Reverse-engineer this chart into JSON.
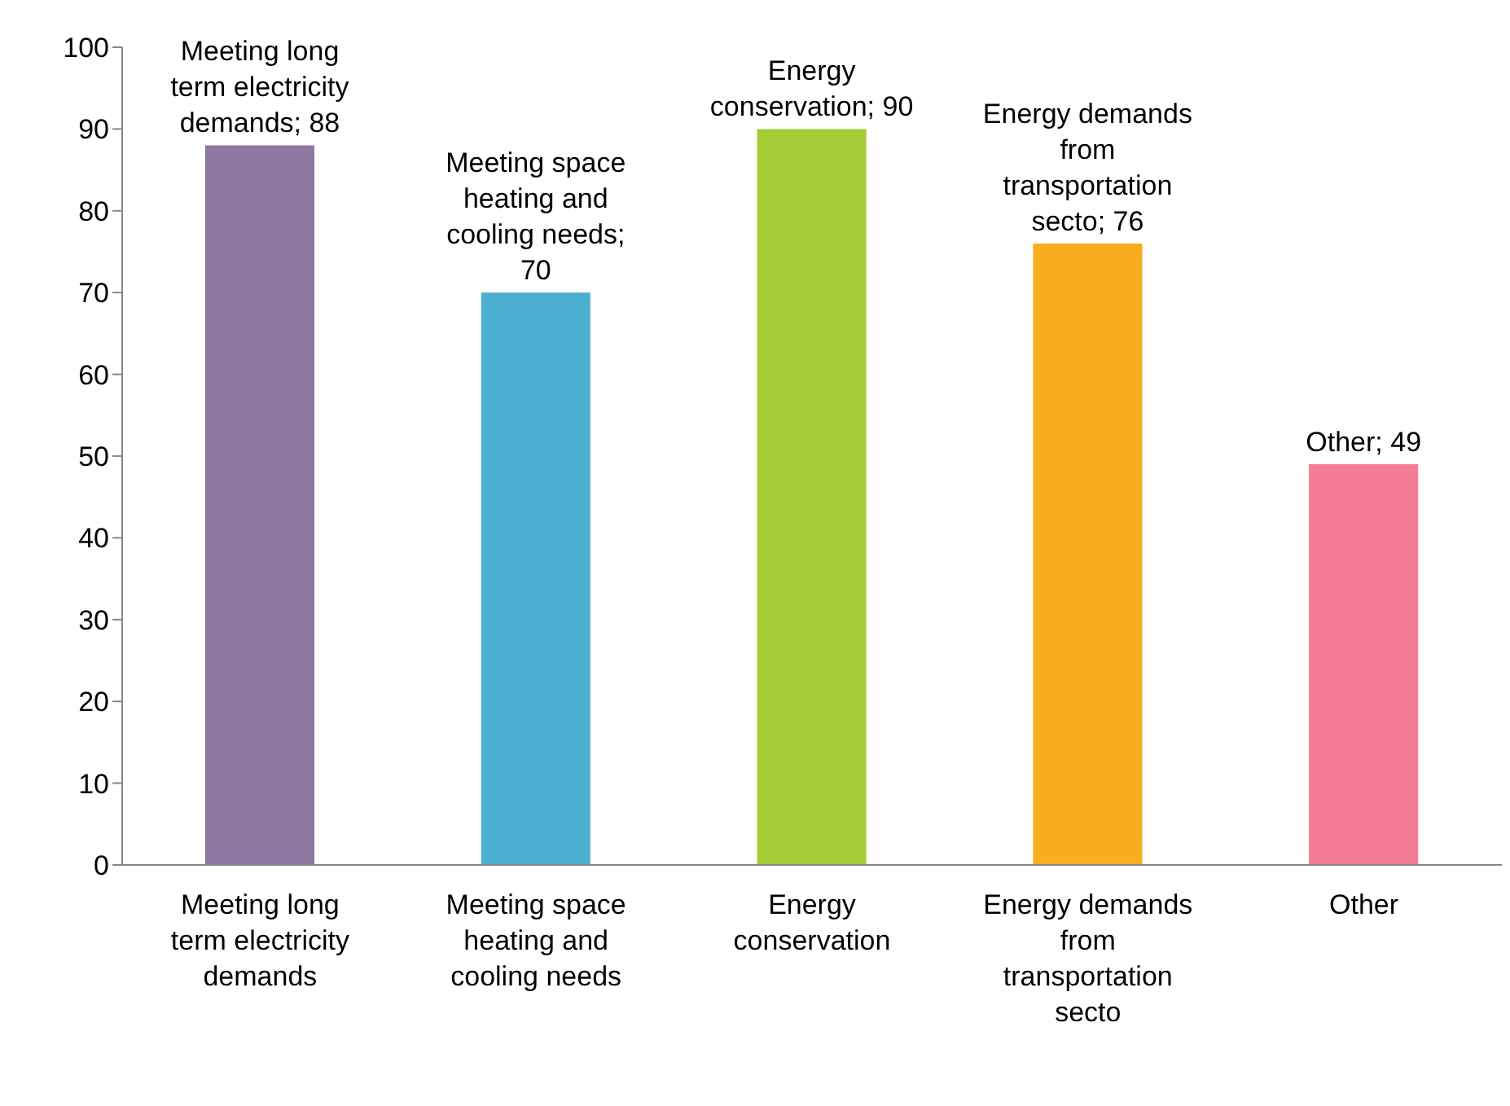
{
  "chart_data": {
    "type": "bar",
    "categories": [
      "Meeting long term electricity demands",
      "Meeting space heating and cooling needs",
      "Energy conservation",
      "Energy demands from transportation secto",
      "Other"
    ],
    "values": [
      88,
      70,
      90,
      76,
      49
    ],
    "colors": [
      "#8e77a0",
      "#4bafcf",
      "#a4cc35",
      "#f7ad1e",
      "#f47c97"
    ],
    "value_labels": [
      "Meeting long term electricity demands; 88",
      "Meeting space heating and cooling needs; 70",
      "Energy conservation; 90",
      "Energy demands from transportation secto; 76",
      "Other; 49"
    ],
    "ylim": [
      0,
      100
    ],
    "yticks": [
      0,
      10,
      20,
      30,
      40,
      50,
      60,
      70,
      80,
      90,
      100
    ],
    "grid": false
  }
}
